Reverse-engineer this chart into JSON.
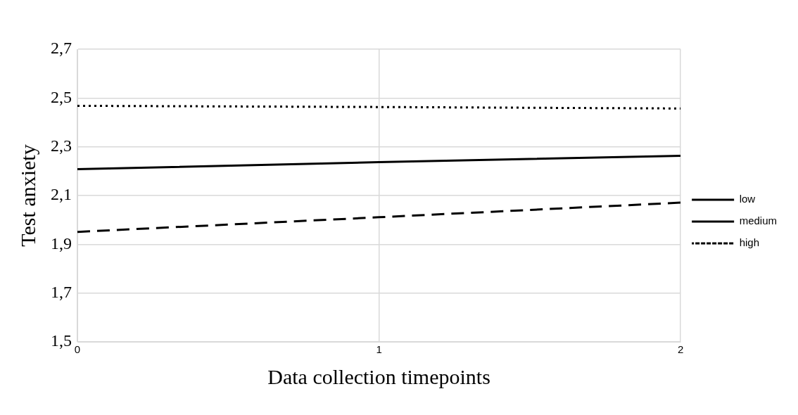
{
  "chart_data": {
    "type": "line",
    "xlabel": "Data collection timepoints",
    "ylabel": "Test anxiety",
    "x": [
      0,
      1,
      2
    ],
    "xlim": [
      0,
      2
    ],
    "xticks": [
      0,
      1,
      2
    ],
    "ylim": [
      1.5,
      2.7
    ],
    "yticks": [
      {
        "value": 1.5,
        "label": "1,5"
      },
      {
        "value": 1.7,
        "label": "1,7"
      },
      {
        "value": 1.9,
        "label": "1,9"
      },
      {
        "value": 2.1,
        "label": "2,1"
      },
      {
        "value": 2.3,
        "label": "2,3"
      },
      {
        "value": 2.5,
        "label": "2,5"
      },
      {
        "value": 2.7,
        "label": "2,7"
      }
    ],
    "grid": true,
    "legend": "right",
    "marker": "none",
    "series": [
      {
        "name": "low",
        "color": "#000000",
        "line_style": "dashed",
        "values": [
          1.951,
          2.011,
          2.071
        ]
      },
      {
        "name": "medium",
        "color": "#000000",
        "line_style": "solid",
        "values": [
          2.208,
          2.237,
          2.263
        ]
      },
      {
        "name": "high",
        "color": "#000000",
        "line_style": "dotted",
        "values": [
          2.468,
          2.463,
          2.457
        ]
      }
    ]
  }
}
